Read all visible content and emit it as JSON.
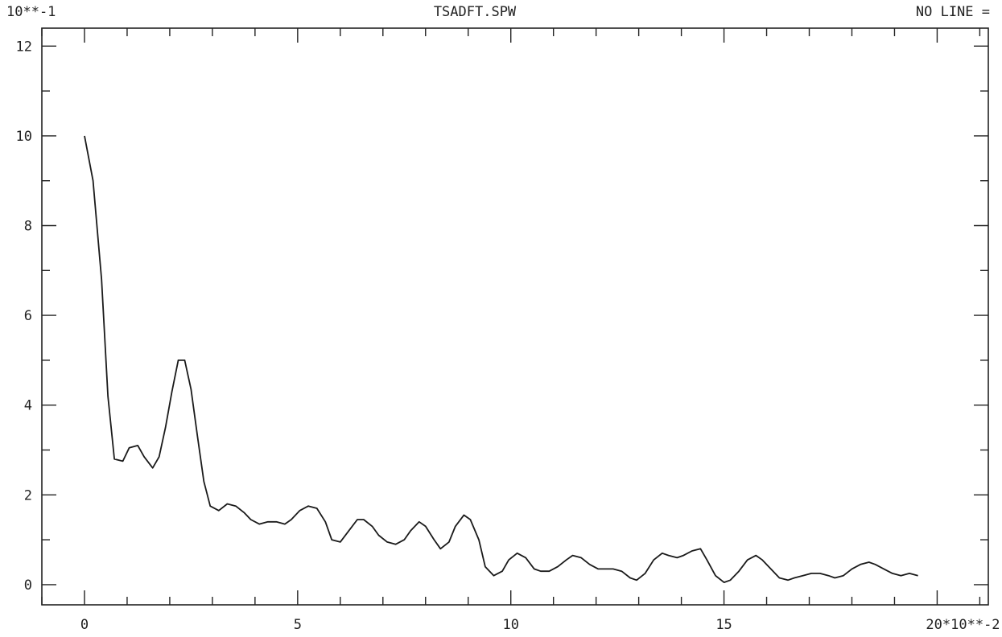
{
  "header": {
    "left": "10**-1",
    "center": "TSADFT.SPW",
    "right": "NO LINE ="
  },
  "chart_data": {
    "type": "line",
    "title": "TSADFT.SPW",
    "y_scale_label": "10**-1",
    "x_scale_label": "20*10**-2",
    "xlim": [
      -1.0,
      21.2
    ],
    "ylim": [
      -0.45,
      12.4
    ],
    "x_major_ticks": [
      0,
      5,
      10,
      15,
      20
    ],
    "x_tick_labels": [
      "0",
      "5",
      "10",
      "15",
      "20*10**-2"
    ],
    "x_minor_step": 1,
    "y_major_ticks": [
      0,
      2,
      4,
      6,
      8,
      10,
      12
    ],
    "y_tick_labels": [
      "0",
      "2",
      "4",
      "6",
      "8",
      "10",
      "12"
    ],
    "y_minor_step": 1,
    "grid": false,
    "series": [
      {
        "x": [
          0.0,
          0.2,
          0.4,
          0.55,
          0.7,
          0.9,
          1.05,
          1.25,
          1.4,
          1.6,
          1.75,
          1.9,
          2.05,
          2.2,
          2.35,
          2.5,
          2.65,
          2.8,
          2.95,
          3.15,
          3.35,
          3.55,
          3.75,
          3.9,
          4.1,
          4.3,
          4.5,
          4.7,
          4.85,
          5.05,
          5.25,
          5.45,
          5.65,
          5.8,
          6.0,
          6.2,
          6.4,
          6.55,
          6.75,
          6.9,
          7.1,
          7.3,
          7.5,
          7.65,
          7.85,
          8.0,
          8.2,
          8.35,
          8.55,
          8.7,
          8.9,
          9.05,
          9.25,
          9.4,
          9.6,
          9.8,
          9.95,
          10.15,
          10.35,
          10.55,
          10.7,
          10.9,
          11.1,
          11.3,
          11.45,
          11.65,
          11.85,
          12.05,
          12.2,
          12.4,
          12.6,
          12.8,
          12.95,
          13.15,
          13.35,
          13.55,
          13.7,
          13.9,
          14.05,
          14.25,
          14.45,
          14.6,
          14.8,
          15.0,
          15.15,
          15.35,
          15.55,
          15.75,
          15.9,
          16.1,
          16.3,
          16.5,
          16.65,
          16.85,
          17.05,
          17.25,
          17.45,
          17.6,
          17.8,
          18.0,
          18.2,
          18.4,
          18.55,
          18.75,
          18.95,
          19.15,
          19.35,
          19.55
        ],
        "y": [
          10.0,
          9.0,
          6.8,
          4.2,
          2.8,
          2.75,
          3.05,
          3.1,
          2.85,
          2.6,
          2.85,
          3.5,
          4.3,
          5.0,
          5.0,
          4.35,
          3.3,
          2.3,
          1.75,
          1.65,
          1.8,
          1.75,
          1.6,
          1.45,
          1.35,
          1.4,
          1.4,
          1.35,
          1.45,
          1.65,
          1.75,
          1.7,
          1.4,
          1.0,
          0.95,
          1.2,
          1.45,
          1.45,
          1.3,
          1.1,
          0.95,
          0.9,
          1.0,
          1.2,
          1.4,
          1.3,
          1.0,
          0.8,
          0.95,
          1.3,
          1.55,
          1.45,
          1.0,
          0.4,
          0.2,
          0.3,
          0.55,
          0.7,
          0.6,
          0.35,
          0.3,
          0.3,
          0.4,
          0.55,
          0.65,
          0.6,
          0.45,
          0.35,
          0.35,
          0.35,
          0.3,
          0.15,
          0.1,
          0.25,
          0.55,
          0.7,
          0.65,
          0.6,
          0.65,
          0.75,
          0.8,
          0.55,
          0.2,
          0.05,
          0.1,
          0.3,
          0.55,
          0.65,
          0.55,
          0.35,
          0.15,
          0.1,
          0.15,
          0.2,
          0.25,
          0.25,
          0.2,
          0.15,
          0.2,
          0.35,
          0.45,
          0.5,
          0.45,
          0.35,
          0.25,
          0.2,
          0.25,
          0.2
        ]
      }
    ]
  }
}
